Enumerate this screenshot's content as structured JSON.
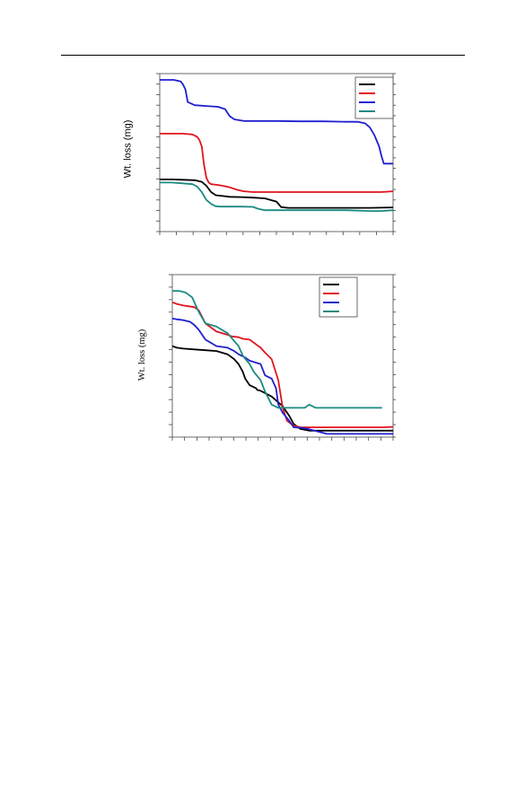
{
  "page": {
    "header_rule": true
  },
  "chart_data": [
    {
      "type": "line",
      "title": "",
      "xlabel": "",
      "ylabel": "Wt. loss (mg)",
      "xlim": [
        0,
        100
      ],
      "ylim": [
        0,
        100
      ],
      "legend": "top-right",
      "grid": false,
      "series": [
        {
          "color": "#000000",
          "x": [
            0,
            5,
            10,
            15,
            18,
            20,
            22,
            24,
            27,
            30,
            35,
            40,
            45,
            50,
            52,
            55,
            60,
            65,
            70,
            80,
            90,
            100
          ],
          "y": [
            33,
            33,
            32.8,
            32.5,
            31.5,
            29,
            25,
            23,
            22.5,
            22,
            21.8,
            21.5,
            21,
            19,
            15.5,
            15,
            15,
            15,
            15,
            15,
            15,
            15.3
          ]
        },
        {
          "color": "#e0141e",
          "x": [
            0,
            5,
            10,
            14,
            16,
            17,
            18,
            18.5,
            19,
            19.5,
            20,
            21,
            22,
            25,
            27,
            30,
            33,
            36,
            40,
            50,
            60,
            70,
            80,
            90,
            95,
            100
          ],
          "y": [
            62,
            62,
            62,
            61.5,
            60,
            58,
            54,
            48,
            42,
            38,
            34,
            31,
            30,
            29.5,
            29,
            28,
            26.5,
            25.5,
            25,
            25,
            25,
            25,
            25,
            25,
            25,
            25.5
          ]
        },
        {
          "color": "#1f1fd0",
          "x": [
            0,
            3,
            6,
            9,
            10,
            11,
            12,
            15,
            20,
            25,
            28,
            30,
            32,
            34,
            36,
            40,
            50,
            60,
            70,
            80,
            85,
            88,
            90,
            92,
            94,
            95,
            96,
            97,
            100
          ],
          "y": [
            96,
            96,
            96,
            95,
            93,
            90,
            82,
            80,
            79.5,
            79,
            77.5,
            73,
            71,
            70.5,
            70,
            70,
            70,
            69.8,
            69.8,
            69.5,
            69.5,
            68.5,
            66,
            61,
            54,
            48,
            43,
            43,
            43
          ]
        },
        {
          "color": "#1a8a82",
          "x": [
            0,
            5,
            10,
            14,
            16,
            18,
            20,
            22,
            24,
            26,
            28,
            30,
            35,
            40,
            42,
            45,
            50,
            60,
            70,
            80,
            90,
            95,
            100
          ],
          "y": [
            31,
            31,
            30.5,
            30,
            28.5,
            25,
            20,
            17.5,
            16,
            15.8,
            15.8,
            15.8,
            15.8,
            15.6,
            14.5,
            13.5,
            13.5,
            13.5,
            13.5,
            13.5,
            13,
            13,
            13.5
          ]
        }
      ]
    },
    {
      "type": "line",
      "title": "",
      "xlabel": "",
      "ylabel": "Wt. loss (mg)",
      "xlim": [
        0,
        100
      ],
      "ylim": [
        0,
        100
      ],
      "legend": "top-right",
      "grid": false,
      "series": [
        {
          "color": "#000000",
          "x": [
            0,
            2,
            5,
            10,
            15,
            20,
            25,
            28,
            30,
            32,
            33,
            35,
            38,
            38.5,
            40,
            45,
            50,
            53,
            55,
            58,
            62,
            70,
            80,
            90,
            95,
            100
          ],
          "y": [
            56,
            55,
            54.5,
            54,
            53.5,
            53,
            51,
            48,
            45,
            40,
            36,
            32,
            30,
            29,
            28.5,
            25,
            19,
            13,
            8,
            5,
            4,
            4,
            4,
            4,
            4,
            4
          ]
        },
        {
          "color": "#e0141e",
          "x": [
            0,
            2,
            5,
            10,
            12,
            15,
            20,
            25,
            27,
            30,
            32,
            35,
            38,
            40,
            42,
            45,
            48,
            50,
            52,
            55,
            58,
            60,
            65,
            70,
            75,
            80,
            85,
            90,
            95,
            100
          ],
          "y": [
            83,
            82,
            81,
            80,
            78,
            70,
            65,
            63,
            62,
            61.5,
            60.5,
            60,
            57,
            55,
            52,
            48,
            35,
            18,
            10,
            7,
            6,
            6,
            6,
            6,
            6,
            6,
            6,
            6,
            6,
            6.3
          ]
        },
        {
          "color": "#1f1fd0",
          "x": [
            0,
            2,
            5,
            8,
            10,
            12,
            15,
            20,
            25,
            28,
            30,
            33,
            35,
            40,
            42,
            45,
            47,
            48,
            50,
            53,
            55,
            57,
            58,
            60,
            70,
            80,
            90,
            100
          ],
          "y": [
            73,
            72.5,
            72,
            71,
            69,
            66,
            60,
            56,
            55,
            53,
            51,
            49,
            47,
            45,
            38,
            36,
            30,
            20,
            15,
            10,
            6,
            5.8,
            5.8,
            5.5,
            2,
            2,
            2,
            2
          ]
        },
        {
          "color": "#1a8a82",
          "x": [
            0,
            3,
            6,
            9,
            12,
            15,
            20,
            25,
            30,
            32,
            35,
            37,
            40,
            42,
            45,
            48,
            50,
            55,
            60,
            62,
            65,
            70,
            80,
            90,
            95
          ],
          "y": [
            90,
            90,
            89,
            86,
            77,
            70,
            68,
            64,
            56,
            50,
            45,
            40,
            35,
            28,
            20,
            18,
            18,
            18,
            18,
            20,
            18,
            18,
            18,
            18,
            18
          ]
        }
      ]
    }
  ]
}
